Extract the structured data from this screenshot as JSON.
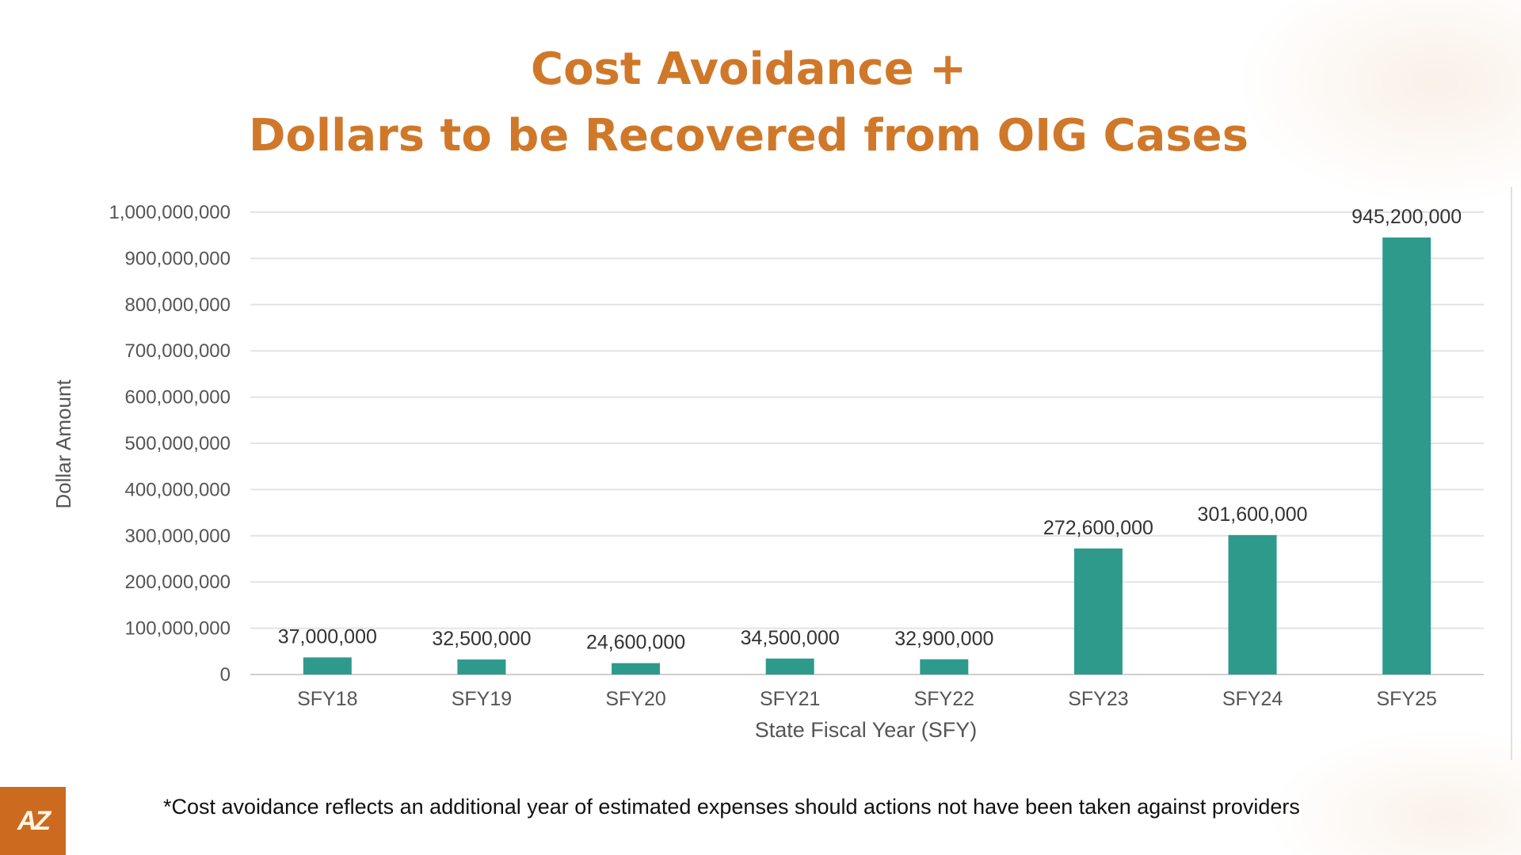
{
  "title_line1": "Cost Avoidance +",
  "title_line2": "Dollars to be Recovered from OIG Cases",
  "footnote": "*Cost avoidance reflects an additional year of estimated expenses should actions not have been taken against providers",
  "logo_text": "AZ",
  "colors": {
    "title": "#d0782a",
    "bar": "#2e9a8c",
    "logo": "#cc6a1f"
  },
  "chart_data": {
    "type": "bar",
    "categories": [
      "SFY18",
      "SFY19",
      "SFY20",
      "SFY21",
      "SFY22",
      "SFY23",
      "SFY24",
      "SFY25"
    ],
    "values": [
      37000000,
      32500000,
      24600000,
      34500000,
      32900000,
      272600000,
      301600000,
      945200000
    ],
    "data_labels": [
      "37,000,000",
      "32,500,000",
      "24,600,000",
      "34,500,000",
      "32,900,000",
      "272,600,000",
      "301,600,000",
      "945,200,000"
    ],
    "xlabel": "State Fiscal Year (SFY)",
    "ylabel": "Dollar Amount",
    "ylim": [
      0,
      1000000000
    ],
    "yticks": [
      0,
      100000000,
      200000000,
      300000000,
      400000000,
      500000000,
      600000000,
      700000000,
      800000000,
      900000000,
      1000000000
    ],
    "ytick_labels": [
      "0",
      "100,000,000",
      "200,000,000",
      "300,000,000",
      "400,000,000",
      "500,000,000",
      "600,000,000",
      "700,000,000",
      "800,000,000",
      "900,000,000",
      "1,000,000,000"
    ],
    "grid": true,
    "legend": "none"
  }
}
